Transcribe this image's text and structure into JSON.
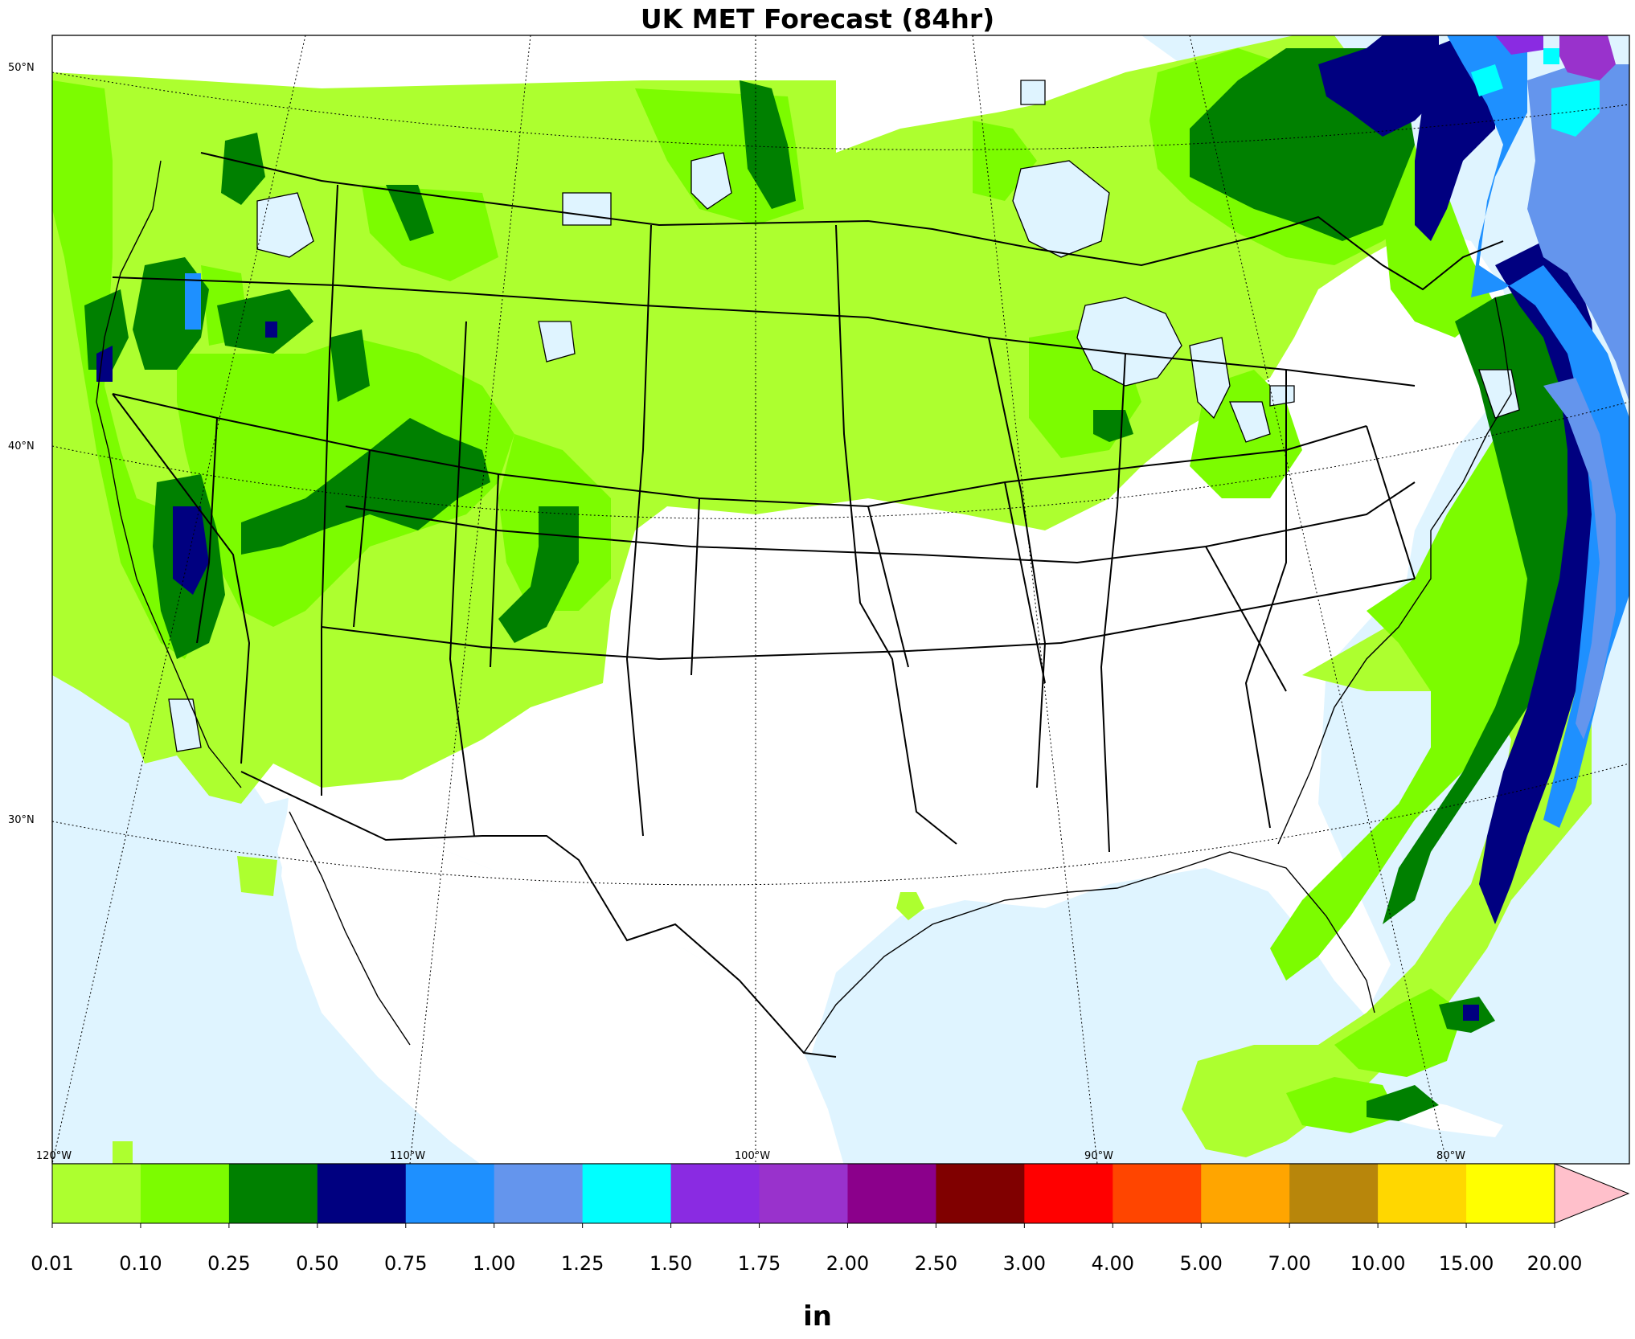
{
  "title": "UK MET Forecast (84hr)",
  "map": {
    "projection": "lambert-conformal",
    "region": "Continental United States",
    "ocean_color": "#dff4ff",
    "land_color": "#ffffff",
    "lat_labels": [
      "50°N",
      "40°N",
      "30°N"
    ],
    "lon_labels": [
      "120°W",
      "110°W",
      "100°W",
      "90°W",
      "80°W"
    ]
  },
  "colorbar": {
    "unit": "in",
    "ticks": [
      "0.01",
      "0.10",
      "0.25",
      "0.50",
      "0.75",
      "1.00",
      "1.25",
      "1.50",
      "1.75",
      "2.00",
      "2.50",
      "3.00",
      "4.00",
      "5.00",
      "7.00",
      "10.00",
      "15.00",
      "20.00"
    ],
    "colors": [
      "#adff2f",
      "#7cfc00",
      "#008000",
      "#000080",
      "#1e90ff",
      "#6495ed",
      "#00ffff",
      "#8a2be2",
      "#9932cc",
      "#8b008b",
      "#800000",
      "#ff0000",
      "#ff4500",
      "#ffa500",
      "#b8860b",
      "#ffd700",
      "#ffff00"
    ],
    "extend_color": "#ffc0cb"
  },
  "chart_data": {
    "type": "heatmap",
    "variable": "precipitation",
    "units": "in",
    "levels": [
      0.01,
      0.1,
      0.25,
      0.5,
      0.75,
      1.0,
      1.25,
      1.5,
      1.75,
      2.0,
      2.5,
      3.0,
      4.0,
      5.0,
      7.0,
      10.0,
      15.0,
      20.0
    ],
    "features": [
      {
        "region": "Pacific Northwest",
        "range": [
          0.1,
          0.75
        ]
      },
      {
        "region": "Northern Rockies / Intermountain West",
        "range": [
          0.01,
          0.5
        ]
      },
      {
        "region": "Northern Plains / Upper Midwest / Great Lakes",
        "range": [
          0.01,
          0.5
        ]
      },
      {
        "region": "Northeast / New England",
        "range": [
          0.25,
          0.75
        ]
      },
      {
        "region": "Western Atlantic offshore",
        "range": [
          0.5,
          2.0
        ]
      },
      {
        "region": "Southern Plains / Southeast",
        "range": [
          0,
          0.01
        ]
      },
      {
        "region": "Caribbean / Cuba",
        "range": [
          0.01,
          0.75
        ]
      }
    ]
  }
}
